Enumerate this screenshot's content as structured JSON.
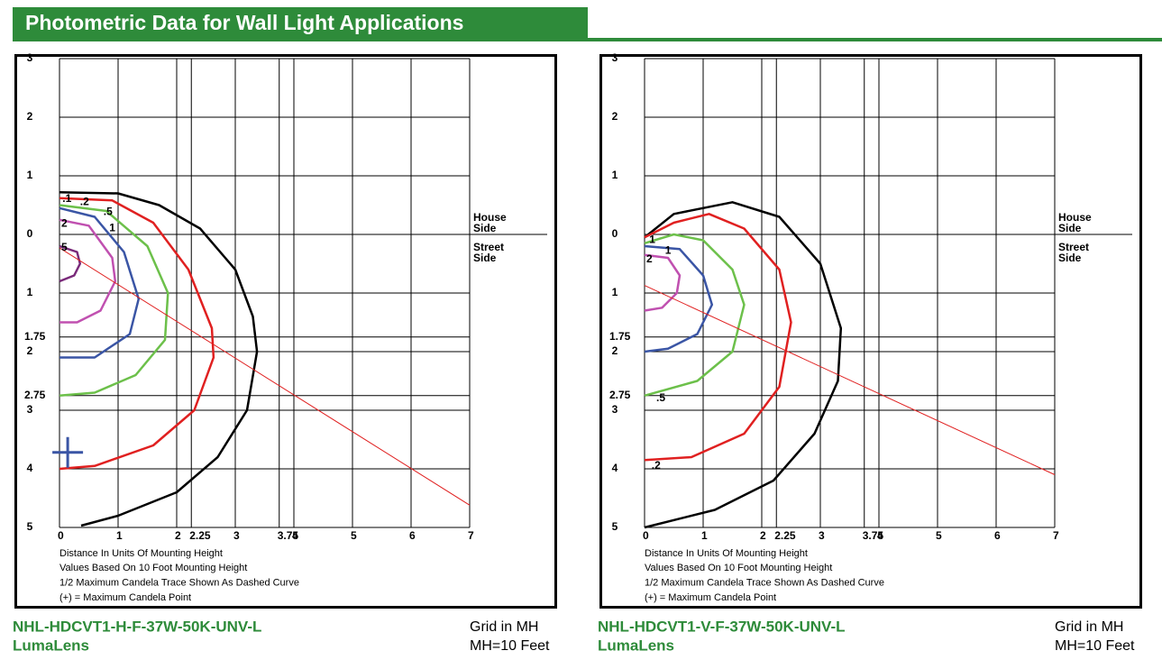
{
  "header": {
    "title": "Photometric Data for Wall Light Applications"
  },
  "panels": [
    {
      "x_ticks": [
        0,
        1,
        2,
        2.25,
        3,
        3.75,
        4,
        5,
        6,
        7
      ],
      "y_ticks": [
        {
          "value": -3,
          "label": "3"
        },
        {
          "value": -2,
          "label": "2"
        },
        {
          "value": -1,
          "label": "1"
        },
        0,
        1,
        1.75,
        2,
        2.75,
        3,
        4,
        5
      ],
      "house_side": "House Side",
      "street_side": "Street Side",
      "notes": [
        "Distance In Units Of Mounting Height",
        "Values Based On 10 Foot Mounting Height",
        "1/2 Maximum Candela Trace Shown As Dashed Curve",
        "(+) = Maximum Candela Point"
      ],
      "contour_labels": [
        ".1",
        ".2",
        ".5",
        "1",
        "2",
        "5"
      ],
      "product": "NHL-HDCVT1-H-F-37W-50K-UNV-L",
      "lens": "LumaLens",
      "grid_note": "Grid in MH",
      "mh_note": "MH=10 Feet"
    },
    {
      "x_ticks": [
        0,
        1,
        2,
        2.25,
        3,
        3.75,
        4,
        5,
        6,
        7
      ],
      "y_ticks": [
        {
          "value": -3,
          "label": "3"
        },
        {
          "value": -2,
          "label": "2"
        },
        {
          "value": -1,
          "label": "1"
        },
        0,
        1,
        1.75,
        2,
        2.75,
        3,
        4,
        5
      ],
      "house_side": "House Side",
      "street_side": "Street Side",
      "notes": [
        "Distance In Units Of Mounting Height",
        "Values Based On 10 Foot Mounting Height",
        "1/2 Maximum Candela Trace Shown As Dashed Curve",
        "(+) = Maximum Candela Point"
      ],
      "contour_labels": [
        "1",
        "1",
        "2",
        ".5",
        ".2"
      ],
      "product": "NHL-HDCVT1-V-F-37W-50K-UNV-L",
      "lens": "LumaLens",
      "grid_note": "Grid in MH",
      "mh_note": "MH=10 Feet"
    }
  ]
}
